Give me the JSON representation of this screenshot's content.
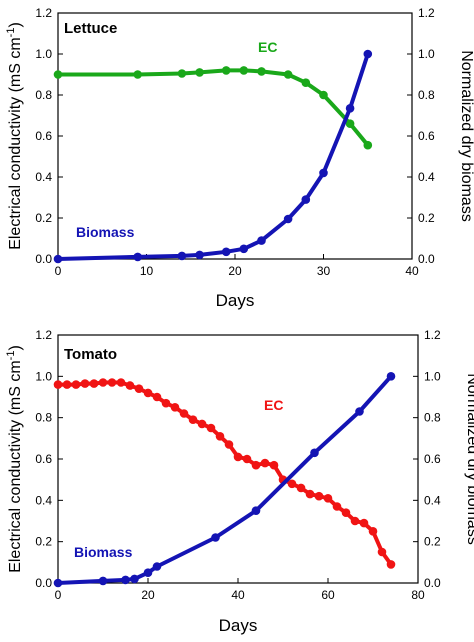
{
  "colors": {
    "ec_lettuce": "#1aa81a",
    "ec_tomato": "#f01414",
    "biomass": "#1414b4"
  },
  "chart_data": [
    {
      "type": "line",
      "title": "Lettuce",
      "xlabel": "Days",
      "ylabel": "Electrical conductivity (mS cm",
      "ylabel_sup": "-1",
      "ylabel_end": ")",
      "y2label": "Normalized dry biomass",
      "xlim": [
        0,
        40
      ],
      "ylim": [
        0,
        1.2
      ],
      "y2lim": [
        0,
        1.2
      ],
      "xticks": [
        "0",
        "10",
        "20",
        "30",
        "40"
      ],
      "yticks": [
        "0.0",
        "0.2",
        "0.4",
        "0.6",
        "0.8",
        "1.0",
        "1.2"
      ],
      "y2ticks": [
        "0.0",
        "0.2",
        "0.4",
        "0.6",
        "0.8",
        "1.0",
        "1.2"
      ],
      "grid": false,
      "series": [
        {
          "name": "EC",
          "axis": "left",
          "color": "#1aa81a",
          "x": [
            0,
            9,
            14,
            16,
            19,
            21,
            23,
            26,
            28,
            30,
            33,
            35
          ],
          "y": [
            0.9,
            0.9,
            0.905,
            0.91,
            0.92,
            0.92,
            0.915,
            0.9,
            0.86,
            0.8,
            0.66,
            0.555
          ]
        },
        {
          "name": "Biomass",
          "axis": "right",
          "color": "#1414b4",
          "x": [
            0,
            9,
            14,
            16,
            19,
            21,
            23,
            26,
            28,
            30,
            33,
            35
          ],
          "y": [
            0.0,
            0.01,
            0.015,
            0.02,
            0.035,
            0.05,
            0.09,
            0.195,
            0.29,
            0.42,
            0.735,
            1.0
          ]
        }
      ]
    },
    {
      "type": "line",
      "title": "Tomato",
      "xlabel": "Days",
      "ylabel": "Electrical conductivity (mS cm",
      "ylabel_sup": "-1",
      "ylabel_end": ")",
      "y2label": "Normalized dry biomass",
      "xlim": [
        0,
        80
      ],
      "ylim": [
        0,
        1.2
      ],
      "y2lim": [
        0,
        1.2
      ],
      "xticks": [
        "0",
        "20",
        "40",
        "60",
        "80"
      ],
      "yticks": [
        "0.0",
        "0.2",
        "0.4",
        "0.6",
        "0.8",
        "1.0",
        "1.2"
      ],
      "y2ticks": [
        "0.0",
        "0.2",
        "0.4",
        "0.6",
        "0.8",
        "1.0",
        "1.2"
      ],
      "grid": false,
      "series": [
        {
          "name": "EC",
          "axis": "left",
          "color": "#f01414",
          "x": [
            0,
            2,
            4,
            6,
            8,
            10,
            12,
            14,
            16,
            18,
            20,
            22,
            24,
            26,
            28,
            30,
            32,
            34,
            36,
            38,
            40,
            42,
            44,
            46,
            48,
            50,
            52,
            54,
            56,
            58,
            60,
            62,
            64,
            66,
            68,
            70,
            72,
            74
          ],
          "y": [
            0.96,
            0.96,
            0.96,
            0.965,
            0.965,
            0.97,
            0.97,
            0.97,
            0.955,
            0.94,
            0.92,
            0.9,
            0.87,
            0.85,
            0.82,
            0.79,
            0.77,
            0.75,
            0.71,
            0.67,
            0.61,
            0.6,
            0.57,
            0.58,
            0.57,
            0.5,
            0.48,
            0.46,
            0.43,
            0.42,
            0.41,
            0.37,
            0.34,
            0.3,
            0.29,
            0.25,
            0.15,
            0.09
          ]
        },
        {
          "name": "Biomass",
          "axis": "right",
          "color": "#1414b4",
          "x": [
            0,
            10,
            15,
            17,
            20,
            22,
            35,
            44,
            57,
            67,
            74
          ],
          "y": [
            0.0,
            0.01,
            0.015,
            0.02,
            0.05,
            0.08,
            0.22,
            0.35,
            0.63,
            0.83,
            1.0
          ]
        }
      ]
    }
  ]
}
